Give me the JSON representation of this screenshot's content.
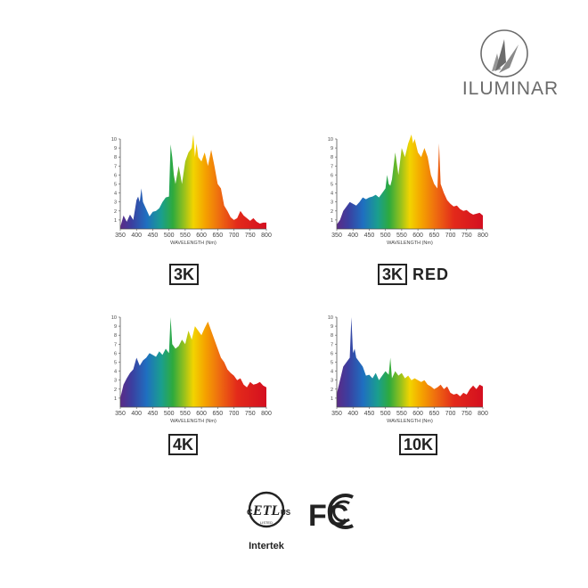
{
  "brand": {
    "name": "ILUMINAR"
  },
  "colors": {
    "text": "#222222",
    "logo_gray": "#6b6b6b"
  },
  "chart_data": [
    {
      "type": "area",
      "label": "3K",
      "label_extra": "",
      "xlabel": "WAVELENGTH (Nm)",
      "ylabel": "",
      "xlim": [
        350,
        800
      ],
      "ylim": [
        0,
        10
      ],
      "xticks": [
        "350",
        "400",
        "450",
        "500",
        "550",
        "600",
        "650",
        "700",
        "750",
        "800"
      ],
      "yticks": [
        "1",
        "2",
        "3",
        "4",
        "5",
        "6",
        "7",
        "8",
        "9",
        "10"
      ],
      "x": [
        350,
        360,
        370,
        380,
        390,
        400,
        405,
        410,
        415,
        420,
        430,
        440,
        450,
        460,
        470,
        480,
        490,
        500,
        505,
        510,
        515,
        520,
        530,
        540,
        550,
        560,
        570,
        575,
        580,
        585,
        590,
        600,
        610,
        620,
        630,
        640,
        650,
        660,
        670,
        680,
        690,
        700,
        710,
        720,
        730,
        740,
        750,
        760,
        770,
        780,
        790,
        800
      ],
      "y": [
        0.2,
        1.5,
        0.8,
        1.6,
        1.0,
        3.2,
        3.6,
        3.0,
        4.5,
        3.0,
        2.2,
        1.4,
        1.9,
        2.0,
        2.3,
        3.0,
        3.5,
        3.6,
        9.4,
        8.0,
        6.0,
        5.0,
        7.0,
        5.0,
        7.5,
        8.5,
        9.0,
        10.5,
        8.0,
        9.5,
        8.0,
        7.5,
        8.5,
        7.0,
        8.8,
        7.0,
        5.0,
        4.5,
        2.6,
        2.0,
        1.3,
        1.0,
        1.2,
        2.0,
        1.5,
        1.2,
        0.9,
        1.2,
        0.8,
        0.6,
        0.7,
        0.7
      ]
    },
    {
      "type": "area",
      "label": "3K",
      "label_extra": "RED",
      "xlabel": "WAVELENGTH (Nm)",
      "ylabel": "",
      "xlim": [
        350,
        800
      ],
      "ylim": [
        0,
        10
      ],
      "xticks": [
        "350",
        "400",
        "450",
        "500",
        "550",
        "600",
        "650",
        "700",
        "750",
        "800"
      ],
      "yticks": [
        "1",
        "2",
        "3",
        "4",
        "5",
        "6",
        "7",
        "8",
        "9",
        "10"
      ],
      "x": [
        350,
        360,
        370,
        380,
        390,
        400,
        410,
        420,
        430,
        440,
        450,
        460,
        470,
        480,
        490,
        500,
        505,
        510,
        515,
        520,
        530,
        540,
        550,
        560,
        570,
        580,
        585,
        590,
        600,
        610,
        620,
        630,
        640,
        650,
        660,
        665,
        670,
        680,
        690,
        700,
        710,
        720,
        730,
        740,
        750,
        760,
        770,
        780,
        790,
        800
      ],
      "y": [
        0.5,
        1.0,
        2.0,
        2.5,
        3.0,
        2.8,
        2.6,
        3.0,
        3.5,
        3.3,
        3.5,
        3.6,
        3.8,
        3.5,
        4.0,
        4.5,
        6.0,
        5.0,
        4.8,
        5.5,
        8.5,
        6.0,
        9.0,
        8.0,
        9.5,
        10.5,
        9.5,
        10.0,
        8.5,
        8.0,
        9.0,
        8.0,
        6.0,
        5.0,
        4.5,
        9.5,
        5.0,
        4.0,
        3.2,
        2.8,
        2.5,
        2.6,
        2.2,
        2.0,
        2.1,
        1.8,
        1.6,
        1.7,
        1.8,
        1.5
      ]
    },
    {
      "type": "area",
      "label": "4K",
      "label_extra": "",
      "xlabel": "WAVELENGTH (Nm)",
      "ylabel": "",
      "xlim": [
        350,
        800
      ],
      "ylim": [
        0,
        10
      ],
      "xticks": [
        "350",
        "400",
        "450",
        "500",
        "550",
        "600",
        "650",
        "700",
        "750",
        "800"
      ],
      "yticks": [
        "1",
        "2",
        "3",
        "4",
        "5",
        "6",
        "7",
        "8",
        "9",
        "10"
      ],
      "x": [
        350,
        360,
        370,
        380,
        390,
        400,
        410,
        420,
        430,
        440,
        450,
        460,
        470,
        480,
        490,
        500,
        505,
        510,
        520,
        530,
        540,
        550,
        560,
        570,
        580,
        590,
        600,
        610,
        620,
        630,
        640,
        650,
        660,
        670,
        680,
        690,
        700,
        710,
        720,
        730,
        740,
        750,
        760,
        770,
        780,
        790,
        800
      ],
      "y": [
        1.0,
        2.5,
        3.2,
        3.8,
        4.2,
        5.5,
        4.6,
        5.2,
        5.5,
        6.0,
        5.8,
        5.6,
        6.2,
        5.8,
        6.5,
        6.0,
        10.0,
        7.0,
        6.5,
        6.8,
        7.5,
        7.0,
        8.5,
        7.5,
        9.0,
        8.5,
        8.0,
        8.8,
        9.5,
        8.5,
        7.5,
        6.5,
        5.5,
        5.0,
        4.2,
        3.8,
        3.5,
        3.0,
        3.2,
        2.5,
        2.2,
        2.8,
        2.5,
        2.6,
        2.8,
        2.4,
        2.2
      ]
    },
    {
      "type": "area",
      "label": "10K",
      "label_extra": "",
      "xlabel": "WAVELENGTH (Nm)",
      "ylabel": "",
      "xlim": [
        350,
        800
      ],
      "ylim": [
        0,
        10
      ],
      "xticks": [
        "350",
        "400",
        "450",
        "500",
        "550",
        "600",
        "650",
        "700",
        "750",
        "800"
      ],
      "yticks": [
        "1",
        "2",
        "3",
        "4",
        "5",
        "6",
        "7",
        "8",
        "9",
        "10"
      ],
      "x": [
        350,
        360,
        370,
        380,
        390,
        395,
        400,
        405,
        410,
        420,
        430,
        440,
        450,
        460,
        470,
        480,
        490,
        500,
        510,
        515,
        520,
        530,
        540,
        550,
        560,
        570,
        580,
        590,
        600,
        610,
        620,
        630,
        640,
        650,
        660,
        670,
        680,
        690,
        700,
        710,
        720,
        730,
        740,
        750,
        760,
        770,
        780,
        790,
        800
      ],
      "y": [
        1.5,
        3.0,
        4.5,
        5.0,
        5.5,
        10.0,
        6.0,
        6.5,
        5.5,
        5.0,
        4.5,
        3.5,
        3.6,
        3.2,
        3.8,
        3.0,
        3.5,
        4.0,
        3.6,
        5.5,
        3.2,
        4.0,
        3.5,
        3.8,
        3.2,
        3.5,
        3.0,
        3.2,
        3.0,
        2.8,
        3.0,
        2.5,
        2.3,
        2.0,
        2.2,
        2.5,
        2.0,
        2.3,
        1.6,
        1.4,
        1.5,
        1.2,
        1.6,
        1.4,
        2.0,
        2.4,
        2.0,
        2.5,
        2.3
      ]
    }
  ],
  "certifications": {
    "etl": {
      "top_left": "C",
      "top_right": "US",
      "mark": "ETL",
      "sub": "LISTED",
      "brand": "Intertek"
    },
    "fcc": {
      "mark": "FC"
    }
  }
}
